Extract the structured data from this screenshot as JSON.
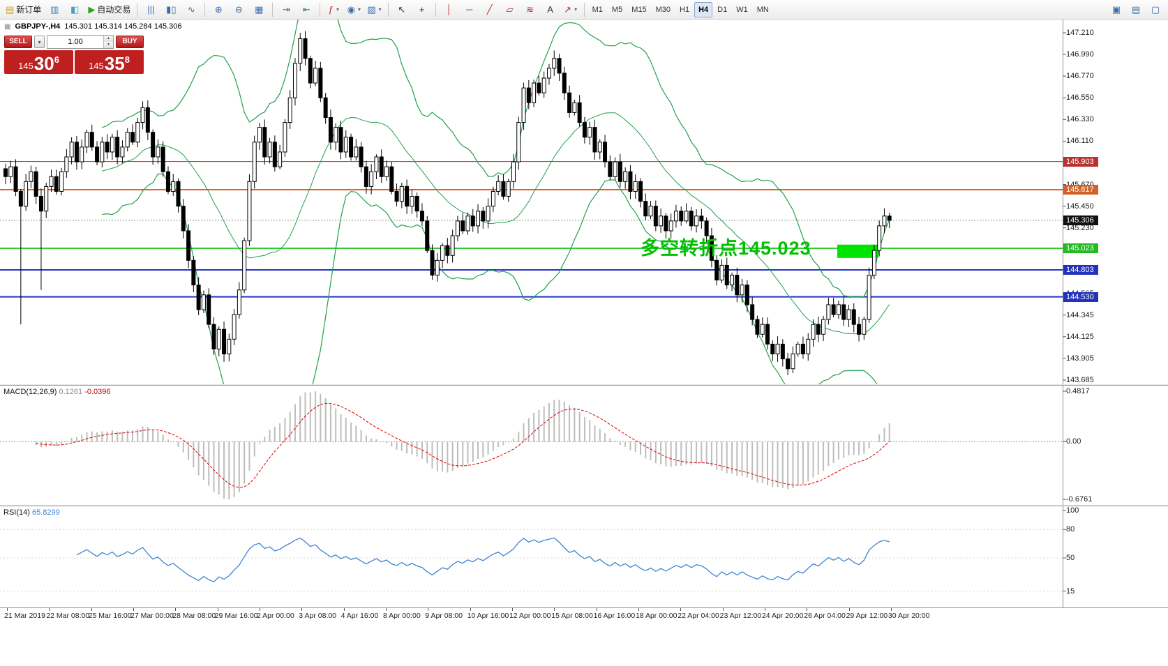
{
  "toolbar": {
    "groups": [
      {
        "name": "file-trade-group",
        "items": [
          {
            "name": "new-order-button",
            "icon": "new-order-icon",
            "glyph": "▤",
            "glyph_color": "#c8a028",
            "label": "新订单"
          },
          {
            "name": "market-watch-button",
            "icon": "market-watch-icon",
            "glyph": "▥",
            "glyph_color": "#4a7fc0"
          },
          {
            "name": "navigator-button",
            "icon": "navigator-icon",
            "glyph": "◧",
            "glyph_color": "#4aa0c0"
          },
          {
            "name": "autotrading-button",
            "icon": "autotrading-icon",
            "glyph": "▶",
            "glyph_color": "#22a822",
            "label": "自动交易"
          }
        ]
      },
      {
        "name": "chart-type-group",
        "items": [
          {
            "name": "bar-chart-button",
            "icon": "bar-chart-icon",
            "glyph": "|||",
            "glyph_color": "#3a6ea8"
          },
          {
            "name": "candlestick-chart-button",
            "icon": "candlestick-chart-icon",
            "glyph": "▮▯",
            "glyph_color": "#3a6ea8"
          },
          {
            "name": "line-chart-button",
            "icon": "line-chart-icon",
            "glyph": "∿",
            "glyph_color": "#3a6ea8"
          }
        ]
      },
      {
        "name": "zoom-group",
        "items": [
          {
            "name": "zoom-in-button",
            "icon": "zoom-in-icon",
            "glyph": "⊕",
            "glyph_color": "#3a6ea8"
          },
          {
            "name": "zoom-out-button",
            "icon": "zoom-out-icon",
            "glyph": "⊖",
            "glyph_color": "#3a6ea8"
          },
          {
            "name": "tile-windows-button",
            "icon": "tile-windows-icon",
            "glyph": "▦",
            "glyph_color": "#3a6ea8"
          }
        ]
      },
      {
        "name": "scroll-group",
        "items": [
          {
            "name": "auto-scroll-button",
            "icon": "auto-scroll-icon",
            "glyph": "⇥",
            "glyph_color": "#2f8f2f"
          },
          {
            "name": "chart-shift-button",
            "icon": "chart-shift-icon",
            "glyph": "⇤",
            "glyph_color": "#2f8f2f"
          }
        ]
      },
      {
        "name": "insert-group",
        "items": [
          {
            "name": "indicators-button",
            "icon": "indicators-icon",
            "glyph": "ƒ",
            "glyph_color": "#b03030",
            "caret": true
          },
          {
            "name": "periods-button",
            "icon": "periods-icon",
            "glyph": "◉",
            "glyph_color": "#3a6ea8",
            "caret": true
          },
          {
            "name": "templates-button",
            "icon": "templates-icon",
            "glyph": "▨",
            "glyph_color": "#3a6ea8",
            "caret": true
          }
        ]
      },
      {
        "name": "cursor-group",
        "items": [
          {
            "name": "cursor-button",
            "icon": "cursor-icon",
            "glyph": "↖",
            "glyph_color": "#333333"
          },
          {
            "name": "crosshair-button",
            "icon": "crosshair-icon",
            "glyph": "+",
            "glyph_color": "#333333"
          }
        ]
      },
      {
        "name": "draw-group",
        "items": [
          {
            "name": "vertical-line-button",
            "icon": "vertical-line-icon",
            "glyph": "│",
            "glyph_color": "#b03030"
          },
          {
            "name": "horizontal-line-button",
            "icon": "horizontal-line-icon",
            "glyph": "─",
            "glyph_color": "#b03030"
          },
          {
            "name": "trendline-button",
            "icon": "trendline-icon",
            "glyph": "╱",
            "glyph_color": "#b03030"
          },
          {
            "name": "channel-button",
            "icon": "equidistant-channel-icon",
            "glyph": "▱",
            "glyph_color": "#b03030"
          },
          {
            "name": "fibonacci-button",
            "icon": "fibonacci-icon",
            "glyph": "≋",
            "glyph_color": "#b03030"
          },
          {
            "name": "text-button",
            "icon": "text-icon",
            "glyph": "A",
            "glyph_color": "#333333"
          },
          {
            "name": "arrows-button",
            "icon": "arrow-objects-icon",
            "glyph": "↗",
            "glyph_color": "#b03030",
            "caret": true
          }
        ]
      }
    ],
    "timeframes": [
      "M1",
      "M5",
      "M15",
      "M30",
      "H1",
      "H4",
      "D1",
      "W1",
      "MN"
    ],
    "active_timeframe": "H4",
    "right_items": [
      {
        "name": "new-chart-button",
        "icon": "new-chart-icon",
        "glyph": "▣",
        "glyph_color": "#3a6ea8"
      },
      {
        "name": "profiles-button",
        "icon": "profiles-icon",
        "glyph": "▤",
        "glyph_color": "#3a6ea8"
      },
      {
        "name": "fullscreen-button",
        "icon": "fullscreen-icon",
        "glyph": "▢",
        "glyph_color": "#3a6ea8"
      }
    ]
  },
  "chart": {
    "symbol_icon_glyph": "▦",
    "symbol_title": "GBPJPY-,H4",
    "ohlc": "145.301 145.314 145.284 145.306",
    "annotation": {
      "text": "多空转折点145.023",
      "color": "#00c000"
    },
    "highlight": {
      "x": 1200,
      "width": 59,
      "price_top": 145.06,
      "price_bottom": 144.925,
      "color": "#00e400"
    },
    "band_color": "#1fa14a",
    "levels": [
      {
        "name": "resistance-line-1",
        "price": "145.903",
        "value": 145.903,
        "line_color": "#cc2020",
        "line_style": "solid",
        "line_width": 1,
        "box_bg": "#b83232"
      },
      {
        "name": "resistance-line-2",
        "price": "145.617",
        "value": 145.617,
        "line_color": "#e2622a",
        "line_style": "solid",
        "line_width": 2,
        "box_bg": "#d2622a"
      },
      {
        "name": "bid-price-line",
        "price": "145.306",
        "value": 145.306,
        "line_color": "#9a9a9a",
        "line_style": "dotted",
        "line_width": 1,
        "box_bg": "#111111"
      },
      {
        "name": "pivot-line",
        "price": "145.023",
        "value": 145.023,
        "line_color": "#33cc33",
        "line_style": "solid",
        "line_width": 2,
        "box_bg": "#22bb22"
      },
      {
        "name": "support-line-1",
        "price": "144.803",
        "value": 144.803,
        "line_color": "#2233cc",
        "line_style": "solid",
        "line_width": 2,
        "box_bg": "#2233bb"
      },
      {
        "name": "support-line-2",
        "price": "144.530",
        "value": 144.53,
        "line_color": "#2233cc",
        "line_style": "solid",
        "line_width": 2,
        "box_bg": "#2233bb"
      }
    ],
    "price_axis_ticks": [
      "147.210",
      "146.990",
      "146.770",
      "146.550",
      "146.330",
      "146.110",
      "145.670",
      "145.450",
      "145.230",
      "144.565",
      "144.345",
      "144.125",
      "143.905",
      "143.685"
    ]
  },
  "trade_panel": {
    "sell_label": "SELL",
    "buy_label": "BUY",
    "volume_value": "1.00",
    "dropdown_glyph": "▾",
    "spin_up_glyph": "▴",
    "spin_down_glyph": "▾",
    "sell_price": {
      "prefix": "145 ",
      "main": "30",
      "sup": "6"
    },
    "buy_price": {
      "prefix": "145 ",
      "main": "35",
      "sup": "8"
    }
  },
  "macd_panel": {
    "name": "MACD(12,26,9)",
    "main_value": "0.1261",
    "signal_value": "-0.0396",
    "ticks": [
      "0.4817",
      "0.00",
      "-0.6761"
    ],
    "histogram_color": "#bdbdbd",
    "signal_color": "#e00000"
  },
  "rsi_panel": {
    "name": "RSI(14)",
    "value": "65.8299",
    "ticks": [
      "100",
      "80",
      "50",
      "15"
    ],
    "line_color": "#3d84d6"
  },
  "time_axis": {
    "labels": [
      "21 Mar 2019",
      "22 Mar 08:00",
      "25 Mar 16:00",
      "27 Mar 00:00",
      "28 Mar 08:00",
      "29 Mar 16:00",
      "2 Apr 00:00",
      "3 Apr 08:00",
      "4 Apr 16:00",
      "8 Apr 00:00",
      "9 Apr 08:00",
      "10 Apr 16:00",
      "12 Apr 00:00",
      "15 Apr 08:00",
      "16 Apr 16:00",
      "18 Apr 00:00",
      "22 Apr 04:00",
      "23 Apr 12:00",
      "24 Apr 20:00",
      "26 Apr 04:00",
      "29 Apr 12:00",
      "30 Apr 20:00"
    ]
  },
  "chart_data": {
    "type": "candlestick",
    "symbol": "GBPJPY-",
    "timeframe": "H4",
    "title": "GBPJPY- H4 with Bollinger Bands, MACD(12,26,9), RSI(14)",
    "y_range": [
      143.685,
      147.21
    ],
    "indicators": {
      "bollinger": {
        "period": 20,
        "deviation": 2
      },
      "macd": {
        "fast": 12,
        "slow": 26,
        "signal": 9
      },
      "rsi": {
        "period": 14
      }
    },
    "closes": [
      145.75,
      145.85,
      145.6,
      145.45,
      145.7,
      145.8,
      145.55,
      145.4,
      145.65,
      145.75,
      145.6,
      145.8,
      145.95,
      146.1,
      145.9,
      146.05,
      146.2,
      146.05,
      145.9,
      146.1,
      146.0,
      146.15,
      145.95,
      146.05,
      146.2,
      146.1,
      146.3,
      146.45,
      146.2,
      145.95,
      146.05,
      145.8,
      145.6,
      145.7,
      145.45,
      145.2,
      144.9,
      144.65,
      144.4,
      144.55,
      144.25,
      144.0,
      144.2,
      143.95,
      144.1,
      144.35,
      144.6,
      145.1,
      145.7,
      146.1,
      146.25,
      145.95,
      146.1,
      145.85,
      146.0,
      146.3,
      146.55,
      146.9,
      147.15,
      146.95,
      146.7,
      146.85,
      146.55,
      146.35,
      146.1,
      146.25,
      146.0,
      146.15,
      145.95,
      146.05,
      145.85,
      145.65,
      145.8,
      145.95,
      145.75,
      145.85,
      145.6,
      145.5,
      145.65,
      145.45,
      145.55,
      145.4,
      145.3,
      145.0,
      144.75,
      144.9,
      145.05,
      144.95,
      145.15,
      145.3,
      145.2,
      145.35,
      145.25,
      145.4,
      145.3,
      145.45,
      145.6,
      145.7,
      145.55,
      145.7,
      145.9,
      146.3,
      146.65,
      146.5,
      146.7,
      146.6,
      146.75,
      146.85,
      146.95,
      146.8,
      146.6,
      146.4,
      146.5,
      146.3,
      146.15,
      146.25,
      146.0,
      146.1,
      145.9,
      145.75,
      145.9,
      145.7,
      145.8,
      145.6,
      145.7,
      145.5,
      145.35,
      145.45,
      145.25,
      145.35,
      145.2,
      145.3,
      145.4,
      145.3,
      145.4,
      145.25,
      145.35,
      145.3,
      145.15,
      144.9,
      144.7,
      144.85,
      144.65,
      144.75,
      144.55,
      144.65,
      144.45,
      144.3,
      144.15,
      144.25,
      144.05,
      143.95,
      144.05,
      143.9,
      143.8,
      143.95,
      144.05,
      143.95,
      144.1,
      144.25,
      144.15,
      144.3,
      144.45,
      144.35,
      144.45,
      144.3,
      144.4,
      144.25,
      144.15,
      144.3,
      144.75,
      145.0,
      145.25,
      145.35,
      145.306
    ],
    "wick_overrides": {
      "3": {
        "low": 144.25
      },
      "7": {
        "low": 144.6
      }
    }
  }
}
